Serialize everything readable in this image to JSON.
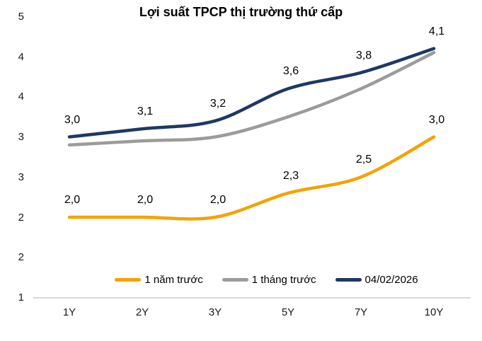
{
  "chart_data": {
    "type": "line",
    "title": "Lợi suất TPCP thị trường thứ cấp",
    "categories": [
      "1Y",
      "2Y",
      "3Y",
      "5Y",
      "7Y",
      "10Y"
    ],
    "series": [
      {
        "name": "1 năm trước",
        "color": "#F5A200",
        "values": [
          2.0,
          2.0,
          2.0,
          2.3,
          2.5,
          3.0
        ],
        "data_labels": [
          "2,0",
          "2,0",
          "2,0",
          "2,3",
          "2,5",
          "3,0"
        ]
      },
      {
        "name": "1 tháng trước",
        "color": "#9B9B9B",
        "values": [
          2.9,
          2.95,
          3.0,
          3.25,
          3.6,
          4.05
        ],
        "data_labels": []
      },
      {
        "name": "04/02/2026",
        "color": "#1F3864",
        "values": [
          3.0,
          3.1,
          3.2,
          3.6,
          3.8,
          4.1
        ],
        "data_labels": [
          "3,0",
          "3,1",
          "3,2",
          "3,6",
          "3,8",
          "4,1"
        ]
      }
    ],
    "x_axis": {
      "tick_labels": [
        "1Y",
        "2Y",
        "3Y",
        "5Y",
        "7Y",
        "10Y"
      ]
    },
    "y_axis": {
      "tick_labels": [
        "5",
        "4",
        "4",
        "3",
        "3",
        "2",
        "2",
        "1"
      ],
      "tick_values": [
        4.5,
        4.0,
        3.5,
        3.0,
        2.5,
        2.0,
        1.5,
        1.0
      ],
      "min": 1.0,
      "max": 4.5
    },
    "legend": {
      "position": "bottom",
      "entries": [
        "1 năm trước",
        "1 tháng trước",
        "04/02/2026"
      ]
    },
    "grid": false,
    "axis_line_color": "#D9D9D9",
    "background": "#FFFFFF"
  }
}
